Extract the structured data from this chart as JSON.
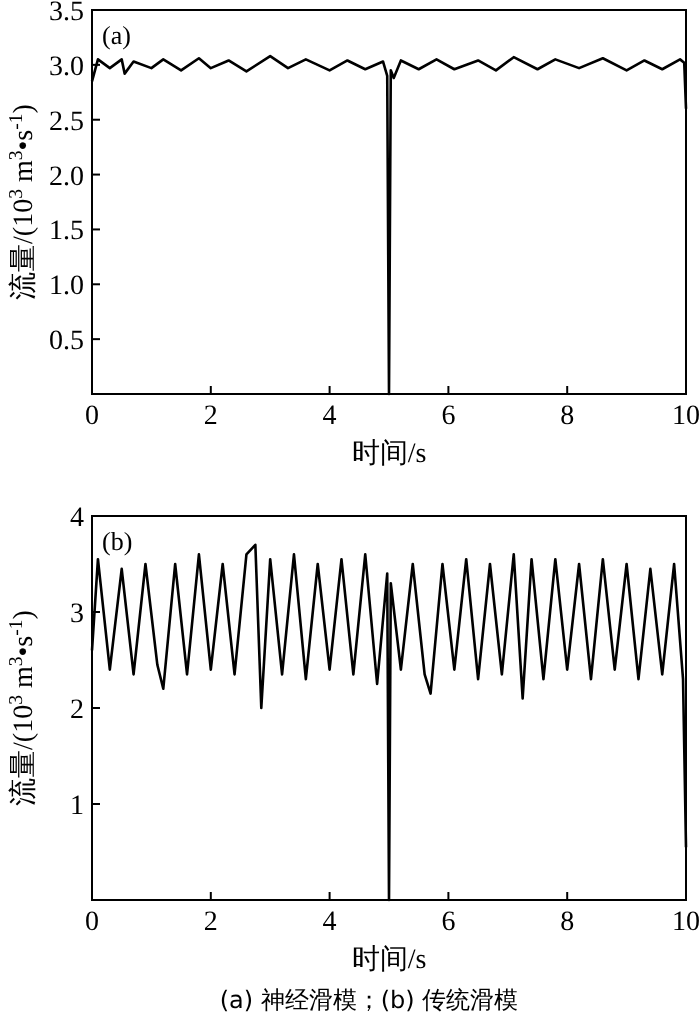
{
  "chart_data": [
    {
      "type": "line",
      "ylabel": "流量/(10$^{3}$ m$^{3}$•s$^{-1}$)",
      "xlabel": "时间/s",
      "annotations": [
        "(a)"
      ],
      "xlim": [
        0,
        10
      ],
      "xticks": [
        0,
        2,
        4,
        6,
        8,
        10
      ],
      "ylim": [
        0,
        3.5
      ],
      "yticks": [
        {
          "value": 0.5,
          "label": "0.5"
        },
        {
          "value": 1,
          "label": "1.0"
        },
        {
          "value": 1.5,
          "label": "1.5"
        },
        {
          "value": 2,
          "label": "2.0"
        },
        {
          "value": 2.5,
          "label": "2.5"
        },
        {
          "value": 3,
          "label": "3.0"
        },
        {
          "value": 3.5,
          "label": "3.5"
        }
      ],
      "grid": false,
      "marker": "none",
      "line_style": "solid",
      "series": [
        {
          "color": "#000000",
          "x": [
            0,
            0.1,
            0.3,
            0.5,
            0.55,
            0.7,
            1.0,
            1.2,
            1.5,
            1.8,
            2.0,
            2.3,
            2.6,
            3.0,
            3.3,
            3.6,
            4.0,
            4.3,
            4.6,
            4.9,
            4.97,
            5.0,
            5.03,
            5.08,
            5.2,
            5.5,
            5.8,
            6.1,
            6.5,
            6.8,
            7.1,
            7.5,
            7.8,
            8.2,
            8.6,
            9.0,
            9.3,
            9.6,
            9.9,
            9.97,
            10
          ],
          "values": [
            2.85,
            3.05,
            2.97,
            3.05,
            2.92,
            3.03,
            2.97,
            3.05,
            2.95,
            3.06,
            2.97,
            3.04,
            2.94,
            3.08,
            2.97,
            3.05,
            2.95,
            3.04,
            2.96,
            3.03,
            2.9,
            0,
            2.95,
            2.88,
            3.04,
            2.96,
            3.05,
            2.96,
            3.04,
            2.95,
            3.07,
            2.96,
            3.05,
            2.97,
            3.06,
            2.95,
            3.04,
            2.96,
            3.05,
            3.02,
            2.6
          ]
        }
      ]
    },
    {
      "type": "line",
      "ylabel": "流量/(10$^{3}$ m$^{3}$•s$^{-1}$)",
      "xlabel": "时间/s",
      "annotations": [
        "(b)",
        "(a) 神经滑模；(b) 传统滑模"
      ],
      "xlim": [
        0,
        10
      ],
      "xticks": [
        0,
        2,
        4,
        6,
        8,
        10
      ],
      "ylim": [
        0,
        4
      ],
      "yticks": [
        1,
        2,
        3,
        4
      ],
      "grid": false,
      "marker": "none",
      "line_style": "solid",
      "series": [
        {
          "color": "#000000",
          "x": [
            0,
            0.1,
            0.3,
            0.5,
            0.7,
            0.9,
            1.1,
            1.2,
            1.4,
            1.6,
            1.8,
            2.0,
            2.2,
            2.4,
            2.6,
            2.75,
            2.85,
            3.0,
            3.2,
            3.4,
            3.6,
            3.8,
            4.0,
            4.2,
            4.4,
            4.6,
            4.8,
            4.97,
            5.0,
            5.03,
            5.2,
            5.4,
            5.6,
            5.7,
            5.9,
            6.1,
            6.3,
            6.5,
            6.7,
            6.9,
            7.1,
            7.25,
            7.4,
            7.6,
            7.8,
            8.0,
            8.2,
            8.4,
            8.6,
            8.8,
            9.0,
            9.2,
            9.4,
            9.6,
            9.8,
            9.95,
            10
          ],
          "values": [
            2.6,
            3.55,
            2.4,
            3.45,
            2.35,
            3.5,
            2.45,
            2.2,
            3.5,
            2.35,
            3.6,
            2.4,
            3.5,
            2.35,
            3.6,
            3.7,
            2.0,
            3.55,
            2.35,
            3.6,
            2.3,
            3.5,
            2.4,
            3.55,
            2.35,
            3.6,
            2.25,
            3.4,
            0,
            3.3,
            2.4,
            3.5,
            2.35,
            2.15,
            3.5,
            2.4,
            3.55,
            2.3,
            3.5,
            2.35,
            3.6,
            2.1,
            3.55,
            2.3,
            3.55,
            2.4,
            3.5,
            2.3,
            3.55,
            2.4,
            3.5,
            2.3,
            3.45,
            2.35,
            3.5,
            2.3,
            0.55
          ]
        }
      ]
    }
  ]
}
